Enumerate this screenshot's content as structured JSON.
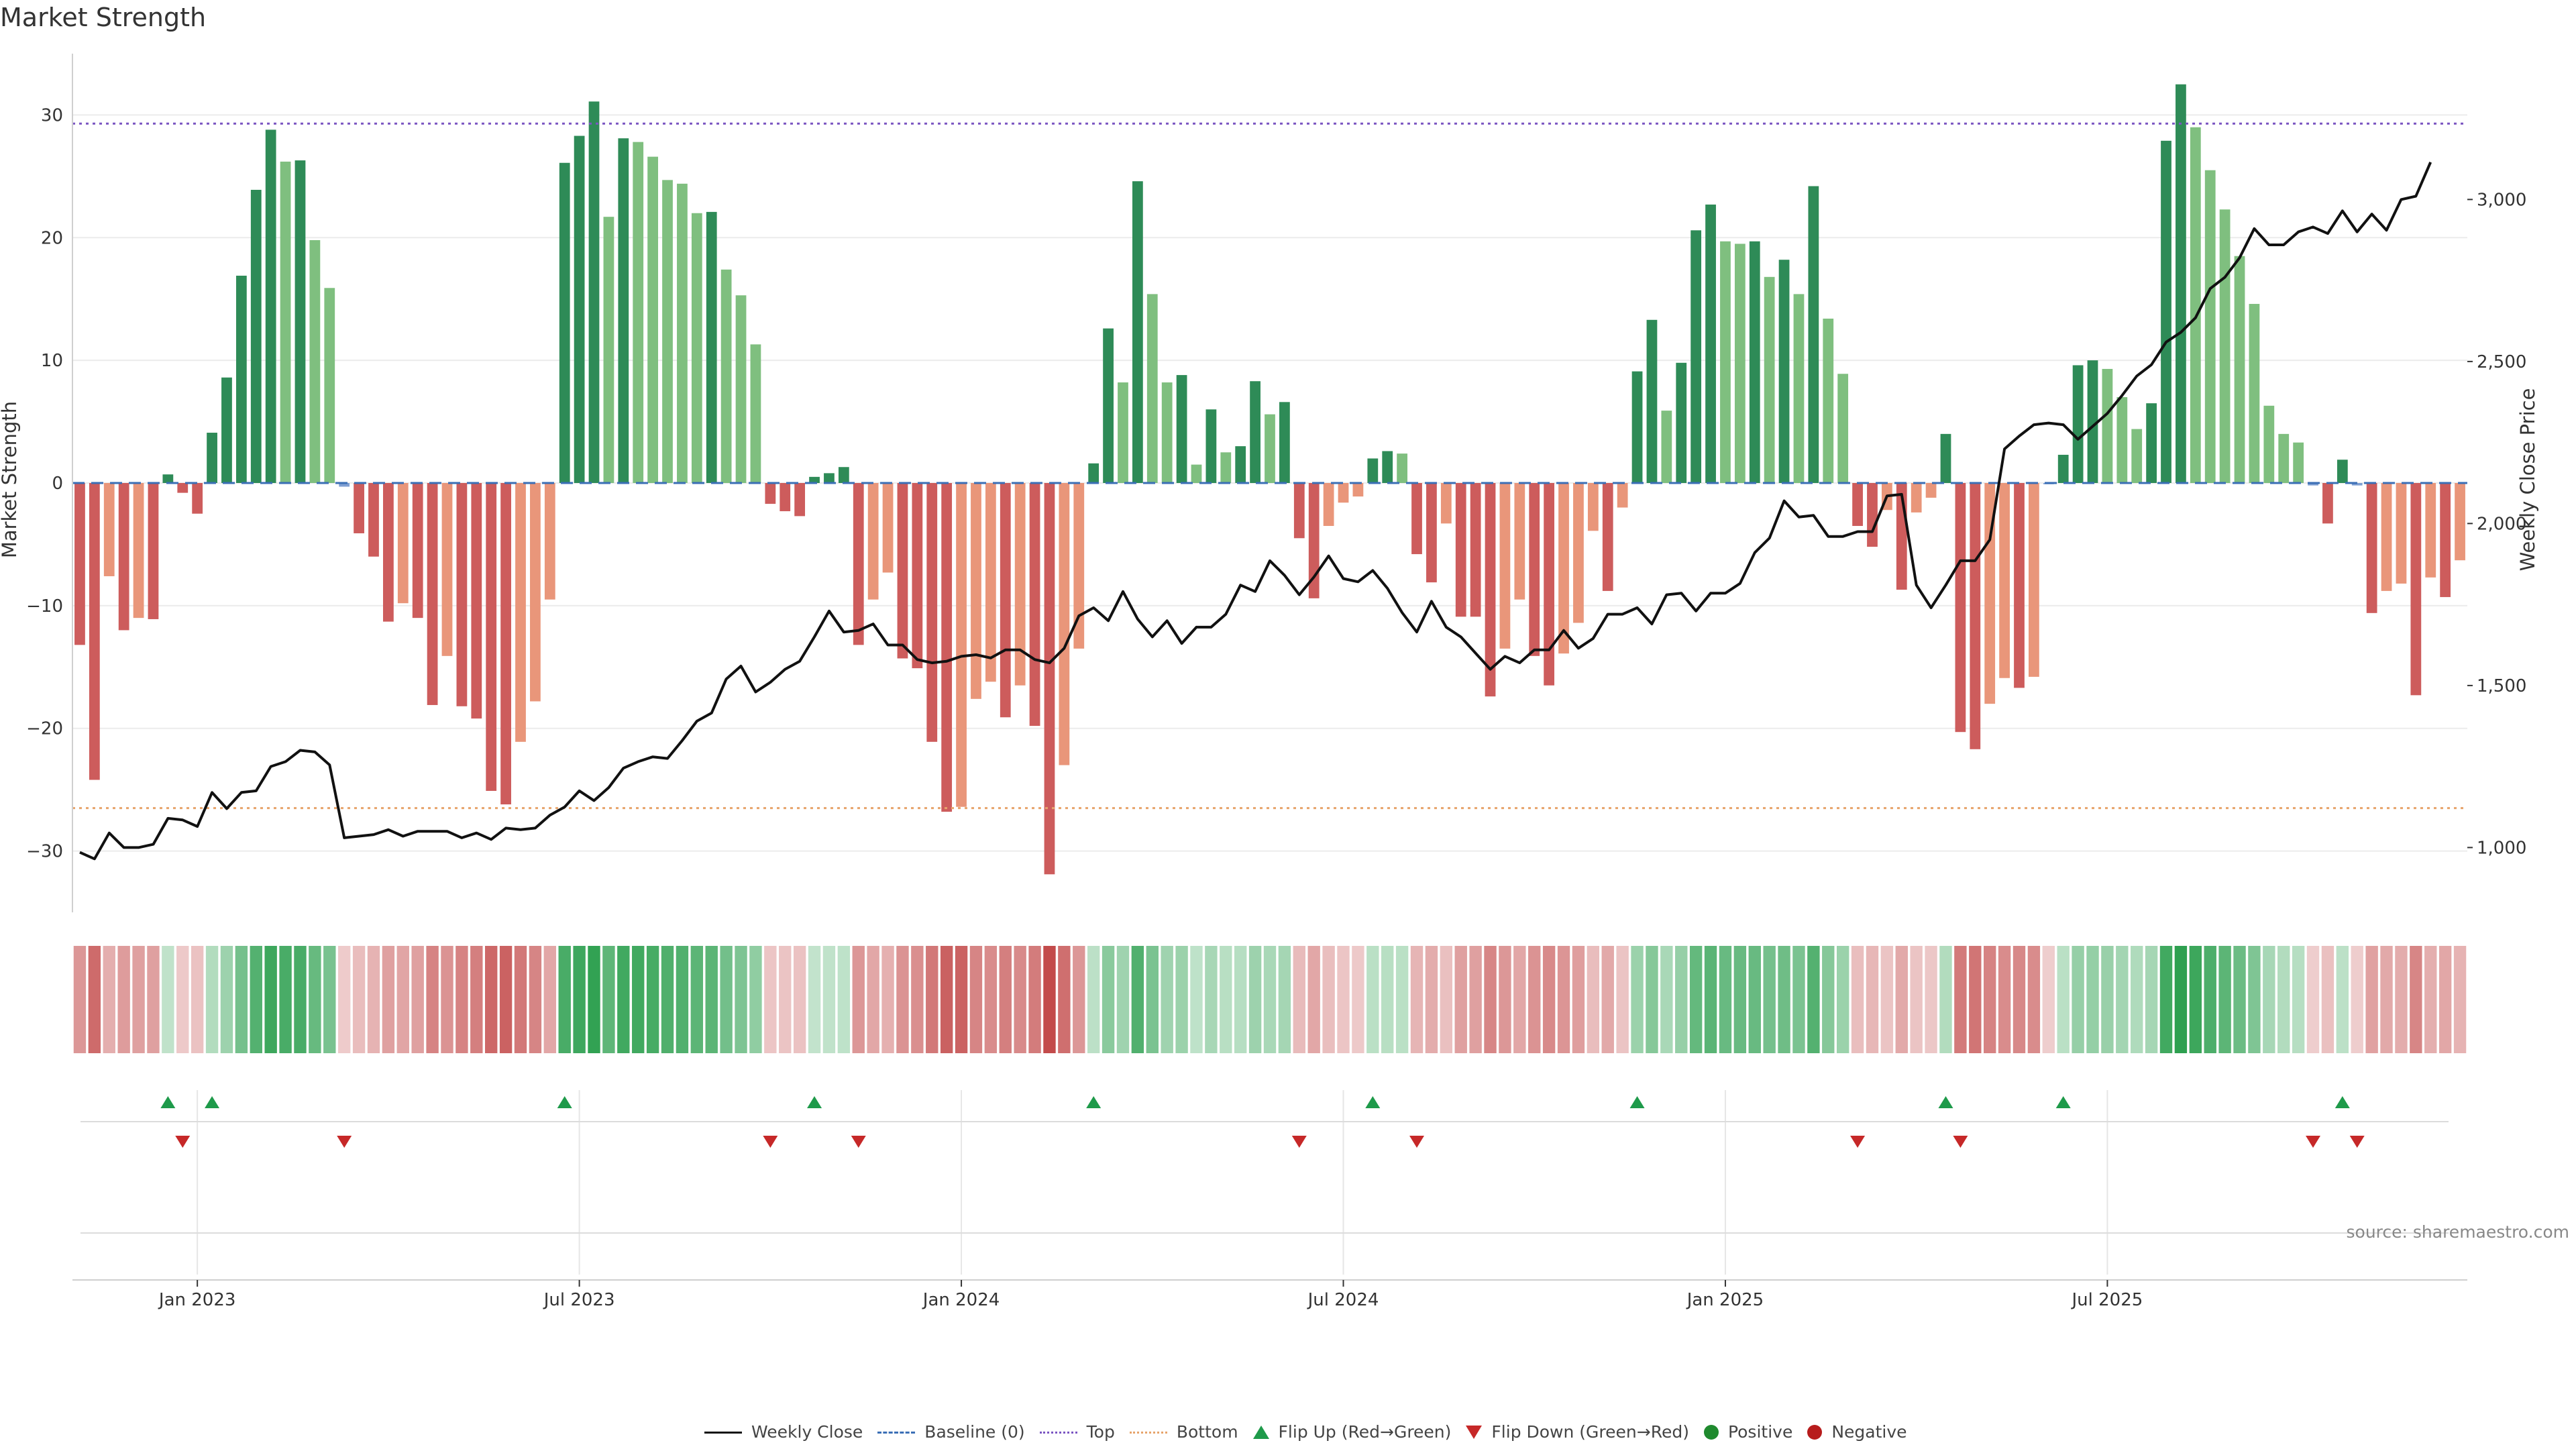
{
  "chart_data": {
    "type": "bar+line",
    "title": "Market Strength",
    "ylabel_left": "Market Strength",
    "ylabel_right": "Weekly Close Price",
    "ylim_left": [
      -35,
      35
    ],
    "ylim_right": [
      800,
      3450
    ],
    "left_ticks": [
      30,
      20,
      10,
      0,
      -10,
      -20,
      -30
    ],
    "left_tick_labels": [
      "30",
      "20",
      "10",
      "0",
      "−10",
      "−20",
      "−30"
    ],
    "right_ticks": [
      3000,
      2500,
      2000,
      1500,
      1000
    ],
    "right_tick_labels": [
      "3,000",
      "2,500",
      "2,000",
      "1,500",
      "1,000"
    ],
    "x_tick_labels": [
      "Jan 2023",
      "Jul 2023",
      "Jan 2024",
      "Jul 2024",
      "Jan 2025",
      "Jul 2025"
    ],
    "x_tick_weeks": [
      8,
      34,
      60,
      86,
      112,
      138
    ],
    "top_line": 29.3,
    "bottom_line": -26.5,
    "baseline": 0,
    "strength": [
      -13.2,
      -24.2,
      -7.6,
      -12.0,
      -11.0,
      -11.1,
      0.7,
      -0.8,
      -2.5,
      4.1,
      8.6,
      16.9,
      23.9,
      28.8,
      26.2,
      26.3,
      19.8,
      15.9,
      -0.3,
      -4.1,
      -6.0,
      -11.3,
      -9.8,
      -11.0,
      -18.1,
      -14.1,
      -18.2,
      -19.2,
      -25.1,
      -26.2,
      -21.1,
      -17.8,
      -9.5,
      26.1,
      28.3,
      31.1,
      21.7,
      28.1,
      27.8,
      26.6,
      24.7,
      24.4,
      22.0,
      22.1,
      17.4,
      15.3,
      11.3,
      -1.7,
      -2.3,
      -2.7,
      0.5,
      0.8,
      1.3,
      -13.2,
      -9.5,
      -7.3,
      -14.3,
      -15.1,
      -21.1,
      -26.8,
      -26.4,
      -17.6,
      -16.2,
      -19.1,
      -16.5,
      -19.8,
      -31.9,
      -23.0,
      -13.5,
      1.6,
      12.6,
      8.2,
      24.6,
      15.4,
      8.2,
      8.8,
      1.5,
      6.0,
      2.5,
      3.0,
      8.3,
      5.6,
      6.6,
      -4.5,
      -9.4,
      -3.5,
      -1.6,
      -1.1,
      2.0,
      2.6,
      2.4,
      -5.8,
      -8.1,
      -3.3,
      -10.9,
      -10.9,
      -17.4,
      -13.5,
      -9.5,
      -14.1,
      -16.5,
      -13.9,
      -11.4,
      -3.9,
      -8.8,
      -2.0,
      9.1,
      13.3,
      5.9,
      9.8,
      20.6,
      22.7,
      19.7,
      19.5,
      19.7,
      16.8,
      18.2,
      15.4,
      24.2,
      13.4,
      8.9,
      -3.5,
      -5.2,
      -2.2,
      -8.7,
      -2.4,
      -1.2,
      4.0,
      -20.3,
      -21.7,
      -18.0,
      -15.9,
      -16.7,
      -15.8,
      -0.1,
      2.3,
      9.6,
      10.0,
      9.3,
      7.0,
      4.4,
      6.5,
      27.9,
      32.5,
      29.0,
      25.5,
      22.3,
      18.5,
      14.6,
      6.3,
      4.0,
      3.3,
      -0.2,
      -3.3,
      1.9,
      -0.2,
      -10.6,
      -8.8,
      -8.2,
      -17.3,
      -7.7,
      -9.3,
      -6.3
    ],
    "weekly_close": [
      985,
      965,
      1045,
      1000,
      1000,
      1010,
      1090,
      1085,
      1065,
      1170,
      1120,
      1170,
      1175,
      1250,
      1265,
      1300,
      1295,
      1255,
      1030,
      1035,
      1040,
      1055,
      1035,
      1050,
      1050,
      1050,
      1030,
      1045,
      1025,
      1060,
      1055,
      1060,
      1100,
      1125,
      1175,
      1145,
      1185,
      1245,
      1265,
      1280,
      1275,
      1330,
      1390,
      1415,
      1520,
      1560,
      1480,
      1510,
      1550,
      1575,
      1650,
      1730,
      1665,
      1670,
      1690,
      1625,
      1625,
      1580,
      1570,
      1575,
      1590,
      1595,
      1585,
      1610,
      1610,
      1580,
      1570,
      1615,
      1715,
      1740,
      1700,
      1790,
      1705,
      1650,
      1700,
      1630,
      1680,
      1680,
      1720,
      1810,
      1790,
      1885,
      1840,
      1780,
      1835,
      1900,
      1830,
      1820,
      1855,
      1800,
      1725,
      1665,
      1760,
      1680,
      1650,
      1600,
      1550,
      1590,
      1570,
      1610,
      1610,
      1670,
      1615,
      1645,
      1720,
      1720,
      1740,
      1690,
      1780,
      1785,
      1730,
      1785,
      1785,
      1815,
      1910,
      1955,
      2070,
      2020,
      2025,
      1960,
      1960,
      1975,
      1975,
      2085,
      2090,
      1810,
      1740,
      1810,
      1885,
      1885,
      1950,
      2230,
      2270,
      2305,
      2310,
      2305,
      2260,
      2300,
      2340,
      2395,
      2455,
      2490,
      2560,
      2590,
      2635,
      2725,
      2760,
      2820,
      2910,
      2860,
      2860,
      2900,
      2915,
      2895,
      2965,
      2900,
      2955,
      2905,
      3000,
      3010,
      3115
    ]
  },
  "legend": {
    "weekly_close": "Weekly Close",
    "baseline": "Baseline (0)",
    "top": "Top",
    "bottom": "Bottom",
    "flip_up": "Flip Up (Red→Green)",
    "flip_down": "Flip Down (Green→Red)",
    "positive": "Positive",
    "negative": "Negative"
  },
  "source": "source: sharemaestro.com",
  "colors": {
    "pos_dark": "#2e8b57",
    "pos_light": "#7fbf7f",
    "neg_dark": "#cd5c5c",
    "neg_light": "#e9967a",
    "price_line": "#111111",
    "top_line": "#7b55c2",
    "bottom_line": "#e7a46b",
    "baseline": "#3b6fb6",
    "flip_up": "#1e9a4a",
    "flip_down": "#c62828"
  }
}
